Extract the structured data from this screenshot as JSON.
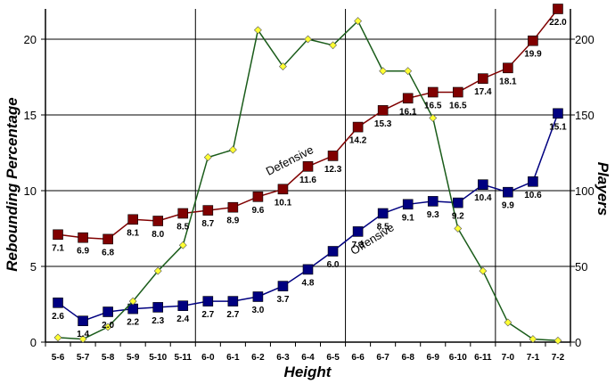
{
  "chart_data": {
    "type": "line",
    "xlabel": "Height",
    "ylabel": "Rebounding Percentage",
    "y2label": "Players",
    "categories": [
      "5-6",
      "5-7",
      "5-8",
      "5-9",
      "5-10",
      "5-11",
      "6-0",
      "6-1",
      "6-2",
      "6-3",
      "6-4",
      "6-5",
      "6-6",
      "6-7",
      "6-8",
      "6-9",
      "6-10",
      "6-11",
      "7-0",
      "7-1",
      "7-2"
    ],
    "ylim": [
      0,
      22
    ],
    "yticks": [
      0,
      5,
      10,
      15,
      20
    ],
    "y2lim": [
      0,
      220
    ],
    "y2ticks": [
      0,
      50,
      100,
      150,
      200
    ],
    "grid": "vertical lines at 6-0, 6-6, 7-0",
    "series": [
      {
        "name": "Defensive",
        "axis": "left",
        "color": "#800000",
        "marker": "square",
        "values": [
          7.1,
          6.9,
          6.8,
          8.1,
          8.0,
          8.5,
          8.7,
          8.9,
          9.6,
          10.1,
          11.6,
          12.3,
          14.2,
          15.3,
          16.1,
          16.5,
          16.5,
          17.4,
          18.1,
          19.9,
          22.0
        ],
        "labels": [
          "7.1",
          "6.9",
          "6.8",
          "8.1",
          "8.0",
          "8.5",
          "8.7",
          "8.9",
          "9.6",
          "10.1",
          "11.6",
          "12.3",
          "14.2",
          "15.3",
          "16.1",
          "16.5",
          "16.5",
          "17.4",
          "18.1",
          "19.9",
          "22.0"
        ]
      },
      {
        "name": "Offensive",
        "axis": "left",
        "color": "#000080",
        "marker": "square",
        "values": [
          2.6,
          1.4,
          2.0,
          2.2,
          2.3,
          2.4,
          2.7,
          2.7,
          3.0,
          3.7,
          4.8,
          6.0,
          7.3,
          8.5,
          9.1,
          9.3,
          9.2,
          10.4,
          9.9,
          10.6,
          15.1
        ],
        "labels": [
          "2.6",
          "1.4",
          "2.0",
          "2.2",
          "2.3",
          "2.4",
          "2.7",
          "2.7",
          "3.0",
          "3.7",
          "4.8",
          "6.0",
          "7.3",
          "8.5",
          "9.1",
          "9.3",
          "9.2",
          "10.4",
          "9.9",
          "10.6",
          "15.1"
        ]
      },
      {
        "axis": "right",
        "color": "#1a5c1a",
        "marker_color": "#ffff33",
        "marker": "diamond",
        "values": [
          3,
          2,
          10,
          27,
          47,
          64,
          122,
          127,
          206,
          182,
          200,
          196,
          212,
          179,
          179,
          148,
          75,
          47,
          13,
          2,
          1
        ]
      }
    ]
  }
}
